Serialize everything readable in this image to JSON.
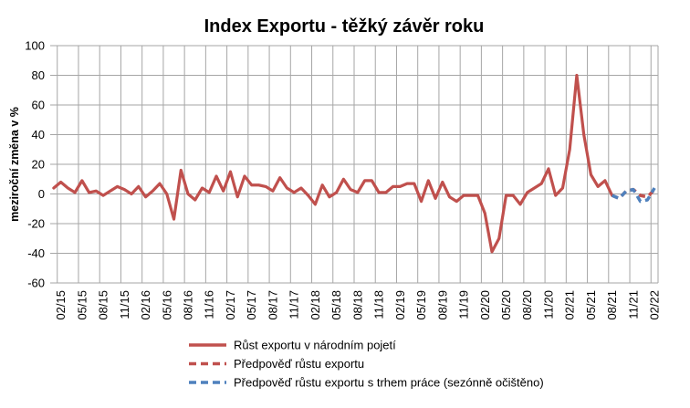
{
  "chart_data": {
    "type": "line",
    "title": "Index Exportu - těžký závěr roku",
    "xlabel": "",
    "ylabel": "meziroční změna v %",
    "ylim": [
      -60,
      100
    ],
    "yticks": [
      -60,
      -40,
      -20,
      0,
      20,
      40,
      60,
      80,
      100
    ],
    "x_tick_labels": [
      "02/15",
      "05/15",
      "08/15",
      "11/15",
      "02/16",
      "05/16",
      "08/16",
      "11/16",
      "02/17",
      "05/17",
      "08/17",
      "11/17",
      "02/18",
      "05/18",
      "08/18",
      "11/18",
      "02/19",
      "05/19",
      "08/19",
      "11/19",
      "02/20",
      "05/20",
      "08/20",
      "11/20",
      "02/21",
      "05/21",
      "08/21",
      "11/21",
      "02/22"
    ],
    "grid": "vertical and horizontal",
    "legend_position": "bottom",
    "series": [
      {
        "name": "Růst exportu v národním pojetí",
        "color": "#c0504d",
        "dash": "solid",
        "x": [
          "01/15",
          "02/15",
          "03/15",
          "04/15",
          "05/15",
          "06/15",
          "07/15",
          "08/15",
          "09/15",
          "10/15",
          "11/15",
          "12/15",
          "01/16",
          "02/16",
          "03/16",
          "04/16",
          "05/16",
          "06/16",
          "07/16",
          "08/16",
          "09/16",
          "10/16",
          "11/16",
          "12/16",
          "01/17",
          "02/17",
          "03/17",
          "04/17",
          "05/17",
          "06/17",
          "07/17",
          "08/17",
          "09/17",
          "10/17",
          "11/17",
          "12/17",
          "01/18",
          "02/18",
          "03/18",
          "04/18",
          "05/18",
          "06/18",
          "07/18",
          "08/18",
          "09/18",
          "10/18",
          "11/18",
          "12/18",
          "01/19",
          "02/19",
          "03/19",
          "04/19",
          "05/19",
          "06/19",
          "07/19",
          "08/19",
          "09/19",
          "10/19",
          "11/19",
          "12/19",
          "01/20",
          "02/20",
          "03/20",
          "04/20",
          "05/20",
          "06/20",
          "07/20",
          "08/20",
          "09/20",
          "10/20",
          "11/20",
          "12/20",
          "01/21",
          "02/21",
          "03/21",
          "04/21",
          "05/21",
          "06/21",
          "07/21",
          "08/21"
        ],
        "values": [
          4,
          8,
          4,
          1,
          9,
          1,
          2,
          -1,
          2,
          5,
          3,
          0,
          5,
          -2,
          2,
          7,
          0,
          -17,
          16,
          0,
          -4,
          4,
          1,
          12,
          2,
          15,
          -2,
          12,
          6,
          6,
          5,
          2,
          11,
          4,
          1,
          4,
          -1,
          -7,
          6,
          -2,
          1,
          10,
          3,
          1,
          9,
          9,
          1,
          1,
          5,
          5,
          7,
          7,
          -5,
          9,
          -3,
          8,
          -2,
          -5,
          -1,
          -1,
          -1,
          -13,
          -39,
          -30,
          -1,
          -1,
          -7,
          1,
          4,
          7,
          17,
          -1,
          4,
          30,
          80,
          40,
          13,
          5,
          9,
          -1
        ]
      },
      {
        "name": "Předpověď růstu exportu",
        "color": "#c0504d",
        "dash": "dashed",
        "x": [
          "08/21",
          "09/21",
          "10/21",
          "11/21",
          "12/21",
          "01/22",
          "02/22"
        ],
        "values": [
          -1,
          -3,
          2,
          3,
          -1,
          -2,
          3
        ]
      },
      {
        "name": "Předpověď růstu exportu s trhem práce (sezónně očištěno)",
        "color": "#4f81bd",
        "dash": "dashed",
        "x": [
          "08/21",
          "09/21",
          "10/21",
          "11/21",
          "12/21",
          "01/22",
          "02/22"
        ],
        "values": [
          -1,
          -3,
          2,
          3,
          -5,
          -4,
          4
        ]
      }
    ]
  }
}
